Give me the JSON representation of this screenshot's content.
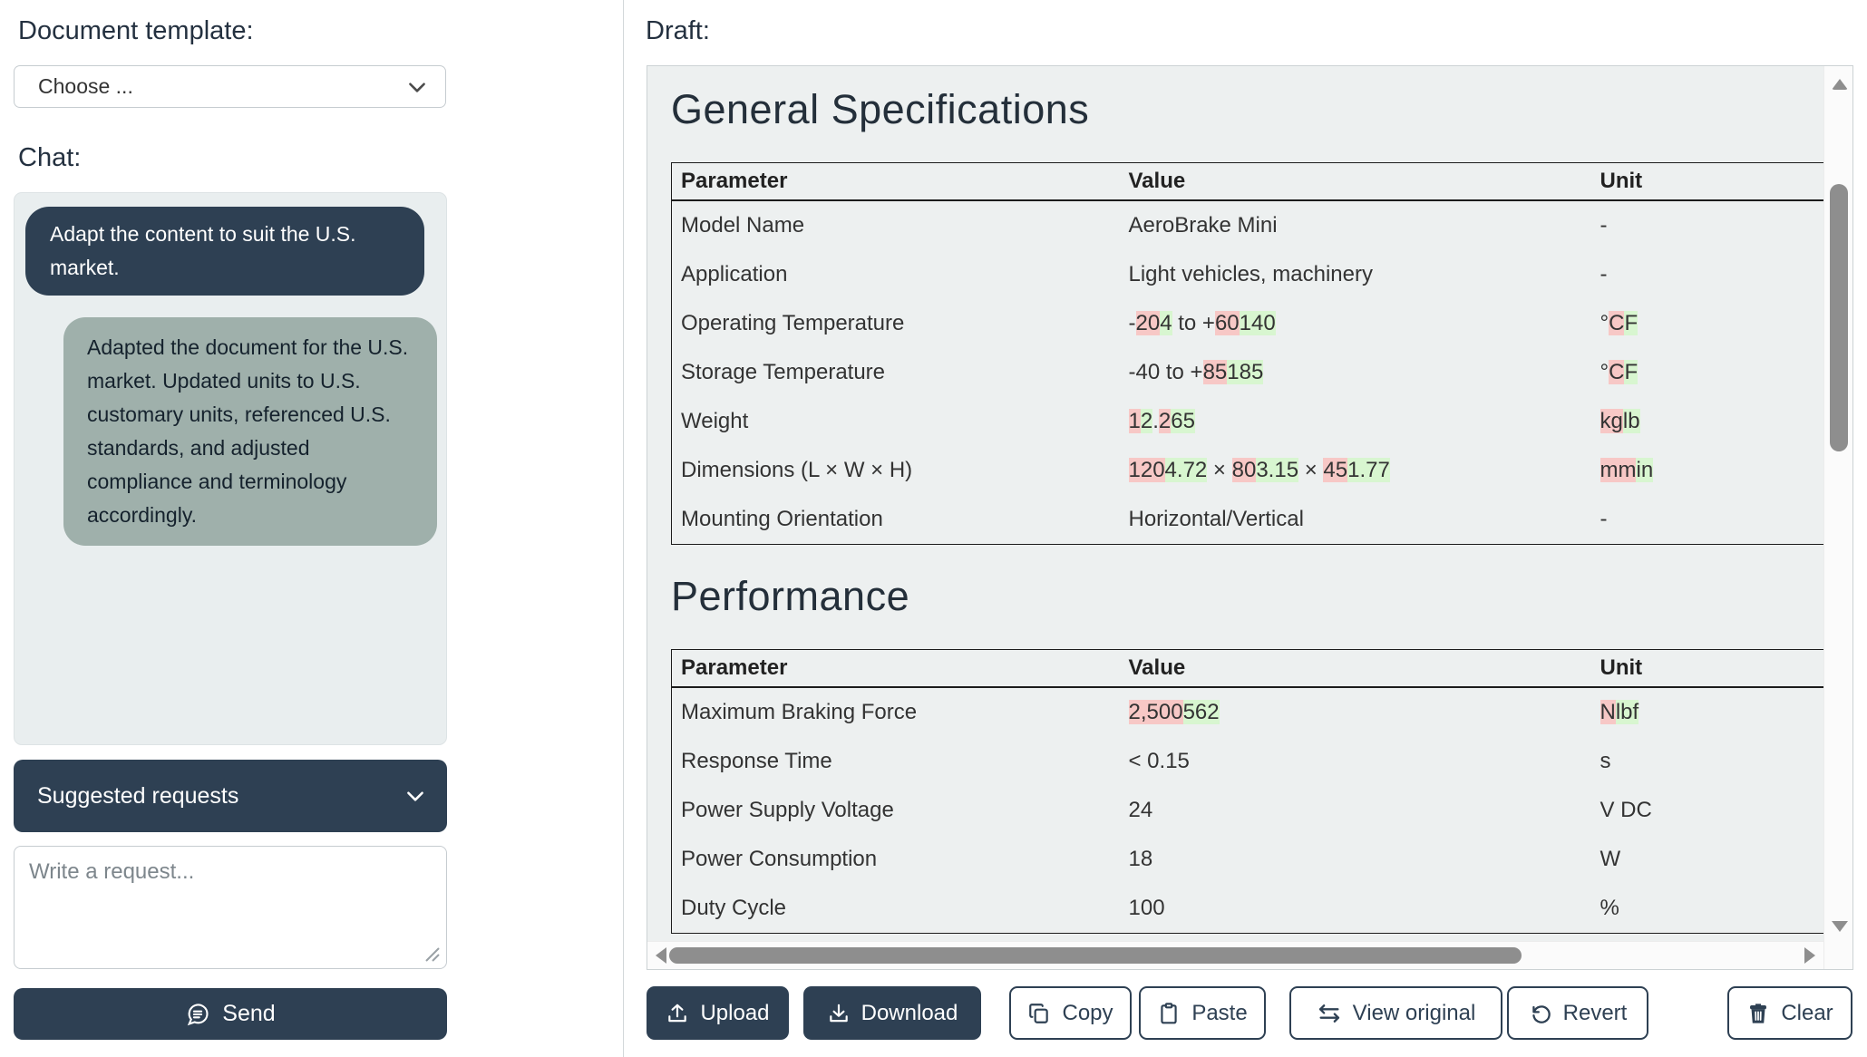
{
  "left_panel": {
    "template_label": "Document template:",
    "template_select": {
      "value": "Choose ..."
    },
    "chat_label": "Chat:",
    "messages": [
      {
        "role": "user",
        "text": "Adapt the content to suit the U.S. market."
      },
      {
        "role": "assistant",
        "text": "Adapted the document for the U.S. market. Updated units to U.S. customary units, referenced U.S. standards, and adjusted compliance and terminology accordingly."
      }
    ],
    "suggested_requests_label": "Suggested requests",
    "request_placeholder": "Write a request...",
    "send_label": "Send"
  },
  "draft_panel": {
    "draft_label": "Draft:",
    "sections": [
      {
        "title": "General Specifications",
        "columns": [
          "Parameter",
          "Value",
          "Unit"
        ],
        "rows": [
          {
            "parameter": "Model Name",
            "value": [
              {
                "t": "AeroBrake Mini"
              }
            ],
            "unit": [
              {
                "t": "-"
              }
            ]
          },
          {
            "parameter": "Application",
            "value": [
              {
                "t": "Light vehicles, machinery"
              }
            ],
            "unit": [
              {
                "t": "-"
              }
            ]
          },
          {
            "parameter": "Operating Temperature",
            "value": [
              {
                "t": "-"
              },
              {
                "t": "20",
                "m": "del"
              },
              {
                "t": "4",
                "m": "ins"
              },
              {
                "t": " to +"
              },
              {
                "t": "60",
                "m": "del"
              },
              {
                "t": "140",
                "m": "ins"
              }
            ],
            "unit": [
              {
                "t": "°"
              },
              {
                "t": "C",
                "m": "del"
              },
              {
                "t": "F",
                "m": "ins"
              }
            ]
          },
          {
            "parameter": "Storage Temperature",
            "value": [
              {
                "t": "-40 to +"
              },
              {
                "t": "85",
                "m": "del"
              },
              {
                "t": "185",
                "m": "ins"
              }
            ],
            "unit": [
              {
                "t": "°"
              },
              {
                "t": "C",
                "m": "del"
              },
              {
                "t": "F",
                "m": "ins"
              }
            ]
          },
          {
            "parameter": "Weight",
            "value": [
              {
                "t": "1",
                "m": "del"
              },
              {
                "t": "2",
                "m": "ins"
              },
              {
                "t": "."
              },
              {
                "t": "2",
                "m": "del"
              },
              {
                "t": "65",
                "m": "ins"
              }
            ],
            "unit": [
              {
                "t": "kg",
                "m": "del"
              },
              {
                "t": "lb",
                "m": "ins"
              }
            ]
          },
          {
            "parameter": "Dimensions (L × W × H)",
            "value": [
              {
                "t": "120",
                "m": "del"
              },
              {
                "t": "4.72",
                "m": "ins"
              },
              {
                "t": " × "
              },
              {
                "t": "80",
                "m": "del"
              },
              {
                "t": "3.15",
                "m": "ins"
              },
              {
                "t": " × "
              },
              {
                "t": "45",
                "m": "del"
              },
              {
                "t": "1.77",
                "m": "ins"
              }
            ],
            "unit": [
              {
                "t": "mm",
                "m": "del"
              },
              {
                "t": "in",
                "m": "ins"
              }
            ]
          },
          {
            "parameter": "Mounting Orientation",
            "value": [
              {
                "t": "Horizontal/Vertical"
              }
            ],
            "unit": [
              {
                "t": "-"
              }
            ]
          }
        ]
      },
      {
        "title": "Performance",
        "columns": [
          "Parameter",
          "Value",
          "Unit"
        ],
        "rows": [
          {
            "parameter": "Maximum Braking Force",
            "value": [
              {
                "t": "2,500",
                "m": "del"
              },
              {
                "t": "562",
                "m": "ins"
              }
            ],
            "unit": [
              {
                "t": "N",
                "m": "del"
              },
              {
                "t": "lbf",
                "m": "ins"
              }
            ]
          },
          {
            "parameter": "Response Time",
            "value": [
              {
                "t": "< 0.15"
              }
            ],
            "unit": [
              {
                "t": "s"
              }
            ]
          },
          {
            "parameter": "Power Supply Voltage",
            "value": [
              {
                "t": "24"
              }
            ],
            "unit": [
              {
                "t": "V DC"
              }
            ]
          },
          {
            "parameter": "Power Consumption",
            "value": [
              {
                "t": "18"
              }
            ],
            "unit": [
              {
                "t": "W"
              }
            ]
          },
          {
            "parameter": "Duty Cycle",
            "value": [
              {
                "t": "100"
              }
            ],
            "unit": [
              {
                "t": "%"
              }
            ]
          }
        ]
      }
    ],
    "toolbar": {
      "upload": "Upload",
      "download": "Download",
      "copy": "Copy",
      "paste": "Paste",
      "view_original": "View original",
      "revert": "Revert",
      "clear": "Clear"
    }
  },
  "colors": {
    "navy": "#2e4053",
    "deletion_highlight": "#f7c8c6",
    "insertion_highlight": "#d8f6d0",
    "assistant_bubble": "#9fb0ab",
    "draft_background": "#edf0f0",
    "chat_background": "#e9eeef"
  }
}
